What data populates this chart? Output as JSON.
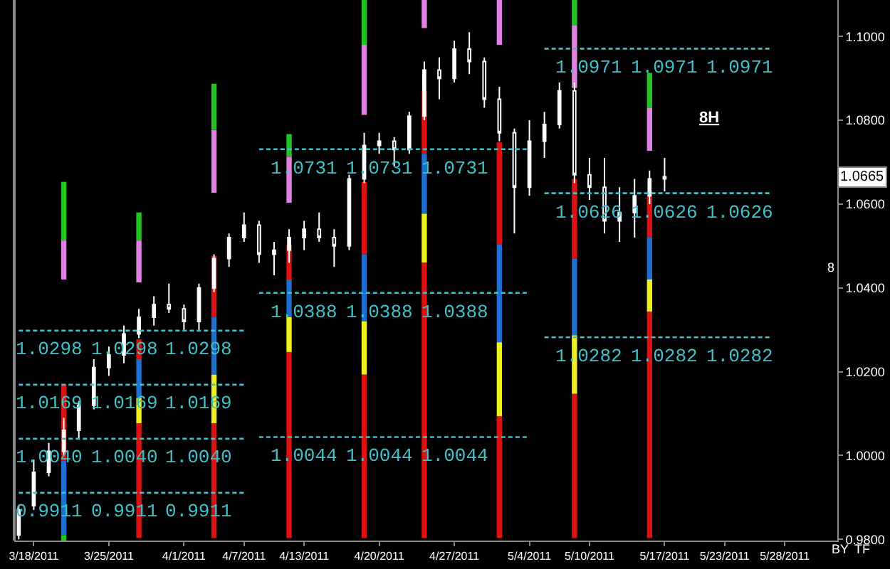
{
  "chart_data": {
    "type": "candlestick",
    "categories": [
      null,
      "3/18/2011",
      null,
      null,
      null,
      null,
      "3/25/2011",
      null,
      null,
      null,
      null,
      "4/1/2011",
      null,
      null,
      null,
      "4/7/2011",
      null,
      null,
      null,
      "4/13/2011",
      null,
      null,
      null,
      null,
      "4/20/2011",
      null,
      null,
      null,
      null,
      "4/27/2011",
      null,
      null,
      null,
      null,
      "5/4/2011",
      null,
      null,
      null,
      "5/10/2011",
      null,
      null,
      null,
      null,
      "5/17/2011",
      null,
      null,
      null,
      "5/23/2011",
      null,
      null,
      null,
      "5/28/2011",
      null,
      null,
      null
    ],
    "ylim": [
      0.9797,
      1.1087
    ],
    "yticks": [
      {
        "value": 0.98,
        "label": "0.9800"
      },
      {
        "value": 1.0,
        "label": "1.0000"
      },
      {
        "value": 1.02,
        "label": "1.0200"
      },
      {
        "value": 1.04,
        "label": "1.0400"
      },
      {
        "value": 1.06,
        "label": "1.0600"
      },
      {
        "value": 1.08,
        "label": "1.0800"
      },
      {
        "value": 1.1,
        "label": "1.1000"
      }
    ],
    "series": [
      {
        "type": "bar",
        "color": "#22c422",
        "values": [
          null,
          null,
          null,
          0.014,
          null,
          null,
          null,
          null,
          0.0067,
          null,
          null,
          null,
          null,
          0.011,
          null,
          null,
          null,
          null,
          0.0054,
          null,
          null,
          null,
          null,
          0.0107,
          null,
          null,
          null,
          null,
          null,
          null,
          null,
          null,
          null,
          null,
          null,
          null,
          null,
          0.006,
          null,
          null,
          null,
          null,
          0.0083,
          null,
          null,
          null,
          null,
          null,
          null,
          null,
          null,
          null,
          null,
          null,
          null
        ],
        "base": [
          null,
          null,
          null,
          1.0513,
          null,
          null,
          null,
          null,
          1.0513,
          null,
          null,
          null,
          null,
          1.0777,
          null,
          null,
          null,
          null,
          1.0713,
          null,
          null,
          null,
          null,
          1.098,
          null,
          null,
          null,
          null,
          null,
          null,
          null,
          null,
          null,
          null,
          null,
          null,
          null,
          1.1027,
          null,
          null,
          null,
          null,
          1.083,
          null,
          null,
          null,
          null,
          null,
          null,
          null,
          null,
          null,
          null,
          null,
          null
        ]
      },
      {
        "type": "bar",
        "color": "#e080e0",
        "values": [
          null,
          null,
          null,
          0.0093,
          null,
          null,
          null,
          null,
          0.01,
          null,
          null,
          null,
          null,
          0.015,
          null,
          null,
          null,
          null,
          0.011,
          null,
          null,
          null,
          null,
          0.0167,
          null,
          null,
          null,
          0.0067,
          null,
          null,
          null,
          null,
          0.0107,
          null,
          null,
          null,
          null,
          0.015,
          null,
          null,
          null,
          null,
          0.0103,
          null,
          null,
          null,
          null,
          null,
          null,
          null,
          null,
          null,
          null,
          null,
          null
        ],
        "base": [
          null,
          null,
          null,
          1.042,
          null,
          null,
          null,
          null,
          1.0413,
          null,
          null,
          null,
          null,
          1.0627,
          null,
          null,
          null,
          null,
          1.0603,
          null,
          null,
          null,
          null,
          1.0813,
          null,
          null,
          null,
          1.102,
          null,
          null,
          null,
          null,
          1.098,
          null,
          null,
          null,
          null,
          1.0877,
          null,
          null,
          null,
          null,
          1.0727,
          null,
          null,
          null,
          null,
          null,
          null,
          null,
          null,
          null,
          null,
          null,
          null
        ]
      },
      {
        "type": "bar",
        "color": "#dd1111",
        "values": [
          null,
          null,
          null,
          0.0183,
          null,
          null,
          null,
          null,
          0.0047,
          null,
          null,
          null,
          null,
          0.0147,
          null,
          null,
          null,
          null,
          0.0083,
          null,
          null,
          null,
          null,
          0.0173,
          null,
          null,
          null,
          0.015,
          null,
          null,
          null,
          null,
          0.0244,
          null,
          null,
          null,
          null,
          0.019,
          null,
          null,
          null,
          null,
          0.011,
          null,
          null,
          null,
          null,
          null,
          null,
          null,
          null,
          null,
          null,
          null,
          null
        ],
        "base": [
          null,
          null,
          null,
          0.9987,
          null,
          null,
          null,
          null,
          1.023,
          null,
          null,
          null,
          null,
          1.033,
          null,
          null,
          null,
          null,
          1.042,
          null,
          null,
          null,
          null,
          1.048,
          null,
          null,
          null,
          1.072,
          null,
          null,
          null,
          null,
          1.0503,
          null,
          null,
          null,
          null,
          1.047,
          null,
          null,
          null,
          null,
          1.052,
          null,
          null,
          null,
          null,
          null,
          null,
          null,
          null,
          null,
          null,
          null,
          null
        ]
      },
      {
        "type": "bar",
        "color": "#1e6fd0",
        "values": [
          null,
          null,
          null,
          0.0177,
          null,
          null,
          null,
          null,
          0.0093,
          null,
          null,
          null,
          null,
          0.0137,
          null,
          null,
          null,
          null,
          0.009,
          null,
          null,
          null,
          null,
          0.016,
          null,
          null,
          null,
          0.0143,
          null,
          null,
          null,
          null,
          0.0233,
          null,
          null,
          null,
          null,
          0.0183,
          null,
          null,
          null,
          null,
          0.01,
          null,
          null,
          null,
          null,
          null,
          null,
          null,
          null,
          null,
          null,
          null,
          null
        ],
        "base": [
          null,
          null,
          null,
          0.981,
          null,
          null,
          null,
          null,
          1.0137,
          null,
          null,
          null,
          null,
          1.0193,
          null,
          null,
          null,
          null,
          1.033,
          null,
          null,
          null,
          null,
          1.032,
          null,
          null,
          null,
          1.0577,
          null,
          null,
          null,
          null,
          1.027,
          null,
          null,
          null,
          null,
          1.0287,
          null,
          null,
          null,
          null,
          1.042,
          null,
          null,
          null,
          null,
          null,
          null,
          null,
          null,
          null,
          null,
          null,
          null
        ]
      },
      {
        "type": "bar",
        "color": "#f0f020",
        "values": [
          null,
          null,
          null,
          null,
          null,
          null,
          null,
          null,
          0.006,
          null,
          null,
          null,
          null,
          0.0116,
          null,
          null,
          null,
          null,
          0.0083,
          null,
          null,
          null,
          null,
          0.0127,
          null,
          null,
          null,
          0.0117,
          null,
          null,
          null,
          null,
          0.0177,
          null,
          null,
          null,
          null,
          0.014,
          null,
          null,
          null,
          null,
          0.0077,
          null,
          null,
          null,
          null,
          null,
          null,
          null,
          null,
          null,
          null,
          null,
          null
        ],
        "base": [
          null,
          null,
          null,
          null,
          null,
          null,
          null,
          null,
          1.0077,
          null,
          null,
          null,
          null,
          1.0077,
          null,
          null,
          null,
          null,
          1.0247,
          null,
          null,
          null,
          null,
          1.0193,
          null,
          null,
          null,
          1.046,
          null,
          null,
          null,
          null,
          1.0093,
          null,
          null,
          null,
          null,
          1.0147,
          null,
          null,
          null,
          null,
          1.0343,
          null,
          null,
          null,
          null,
          null,
          null,
          null,
          null,
          null,
          null,
          null,
          null
        ]
      },
      {
        "type": "bar",
        "color": "#dd1111",
        "values": [
          null,
          null,
          null,
          null,
          null,
          null,
          null,
          null,
          0.0274,
          null,
          null,
          null,
          null,
          0.0274,
          null,
          null,
          null,
          null,
          0.0444,
          null,
          null,
          null,
          null,
          0.039,
          null,
          null,
          null,
          0.0657,
          null,
          null,
          null,
          null,
          0.029,
          null,
          null,
          null,
          null,
          0.0344,
          null,
          null,
          null,
          null,
          0.054,
          null,
          null,
          null,
          null,
          null,
          null,
          null,
          null,
          null,
          null,
          null,
          null
        ],
        "base": [
          null,
          null,
          null,
          null,
          null,
          null,
          null,
          null,
          0.9803,
          null,
          null,
          null,
          null,
          0.9803,
          null,
          null,
          null,
          null,
          0.9803,
          null,
          null,
          null,
          null,
          0.9803,
          null,
          null,
          null,
          0.9803,
          null,
          null,
          null,
          null,
          0.9803,
          null,
          null,
          null,
          null,
          0.9803,
          null,
          null,
          null,
          null,
          0.9803,
          null,
          null,
          null,
          null,
          null,
          null,
          null,
          null,
          null,
          null,
          null,
          null
        ]
      },
      {
        "type": "bar",
        "color": "#22c422",
        "values": [
          null,
          null,
          null,
          0.0013,
          null,
          null,
          null,
          null,
          null,
          null,
          null,
          null,
          null,
          null,
          null,
          null,
          null,
          null,
          null,
          null,
          null,
          null,
          null,
          null,
          null,
          null,
          null,
          null,
          null,
          null,
          null,
          null,
          null,
          null,
          null,
          null,
          null,
          null,
          null,
          null,
          null,
          null,
          null,
          null,
          null,
          null,
          null,
          null,
          null,
          null,
          null,
          null,
          null,
          null,
          null
        ],
        "base": [
          null,
          null,
          null,
          0.9797,
          null,
          null,
          null,
          null,
          null,
          null,
          null,
          null,
          null,
          null,
          null,
          null,
          null,
          null,
          null,
          null,
          null,
          null,
          null,
          null,
          null,
          null,
          null,
          null,
          null,
          null,
          null,
          null,
          null,
          null,
          null,
          null,
          null,
          null,
          null,
          null,
          null,
          null,
          null,
          null,
          null,
          null,
          null,
          null,
          null,
          null,
          null,
          null,
          null,
          null,
          null
        ]
      },
      {
        "type": "line",
        "color": "#40c0c8",
        "line_style": "dashed",
        "values": [
          0.9911,
          0.9911,
          0.9911,
          0.9911,
          0.9911,
          0.9911,
          0.9911,
          0.9911,
          0.9911,
          0.9911,
          0.9911,
          0.9911,
          0.9911,
          0.9911,
          0.9911,
          0.9911,
          null,
          null,
          null,
          null,
          null,
          null,
          null,
          null,
          null,
          null,
          null,
          null,
          null,
          null,
          null,
          null,
          null,
          null,
          null,
          null,
          null,
          null,
          null,
          null,
          null,
          null,
          null,
          null,
          null,
          null,
          null,
          null,
          null,
          null,
          null,
          null,
          null,
          null,
          null
        ],
        "value_labels": [
          null,
          null,
          "0.9911",
          null,
          null,
          null,
          null,
          "0.9911",
          null,
          null,
          null,
          null,
          "0.9911",
          null,
          null,
          null,
          null,
          null,
          null,
          null,
          null,
          null,
          null,
          null,
          null,
          null,
          null,
          null,
          null,
          null,
          null,
          null,
          null,
          null,
          null,
          null,
          null,
          null,
          null,
          null,
          null,
          null,
          null,
          null,
          null,
          null,
          null,
          null,
          null,
          null,
          null,
          null,
          null,
          null,
          null
        ]
      },
      {
        "type": "line",
        "color": "#40c0c8",
        "line_style": "dashed",
        "values": [
          1.004,
          1.004,
          1.004,
          1.004,
          1.004,
          1.004,
          1.004,
          1.004,
          1.004,
          1.004,
          1.004,
          1.004,
          1.004,
          1.004,
          1.004,
          1.004,
          null,
          null,
          null,
          null,
          null,
          null,
          null,
          null,
          null,
          null,
          null,
          null,
          null,
          null,
          null,
          null,
          null,
          null,
          null,
          null,
          null,
          null,
          null,
          null,
          null,
          null,
          null,
          null,
          null,
          null,
          null,
          null,
          null,
          null,
          null,
          null,
          null,
          null,
          null
        ],
        "value_labels": [
          null,
          null,
          "1.0040",
          null,
          null,
          null,
          null,
          "1.0040",
          null,
          null,
          null,
          null,
          "1.0040",
          null,
          null,
          null,
          null,
          null,
          null,
          null,
          null,
          null,
          null,
          null,
          null,
          null,
          null,
          null,
          null,
          null,
          null,
          null,
          null,
          null,
          null,
          null,
          null,
          null,
          null,
          null,
          null,
          null,
          null,
          null,
          null,
          null,
          null,
          null,
          null,
          null,
          null,
          null,
          null,
          null,
          null
        ]
      },
      {
        "type": "line",
        "color": "#40c0c8",
        "line_style": "dashed",
        "values": [
          1.0169,
          1.0169,
          1.0169,
          1.0169,
          1.0169,
          1.0169,
          1.0169,
          1.0169,
          1.0169,
          1.0169,
          1.0169,
          1.0169,
          1.0169,
          1.0169,
          1.0169,
          1.0169,
          null,
          null,
          null,
          null,
          null,
          null,
          null,
          null,
          null,
          null,
          null,
          null,
          null,
          null,
          null,
          null,
          null,
          null,
          null,
          null,
          null,
          null,
          null,
          null,
          null,
          null,
          null,
          null,
          null,
          null,
          null,
          null,
          null,
          null,
          null,
          null,
          null,
          null,
          null
        ],
        "value_labels": [
          null,
          null,
          "1.0169",
          null,
          null,
          null,
          null,
          "1.0169",
          null,
          null,
          null,
          null,
          "1.0169",
          null,
          null,
          null,
          null,
          null,
          null,
          null,
          null,
          null,
          null,
          null,
          null,
          null,
          null,
          null,
          null,
          null,
          null,
          null,
          null,
          null,
          null,
          null,
          null,
          null,
          null,
          null,
          null,
          null,
          null,
          null,
          null,
          null,
          null,
          null,
          null,
          null,
          null,
          null,
          null,
          null,
          null
        ]
      },
      {
        "type": "line",
        "color": "#40c0c8",
        "line_style": "dashed",
        "values": [
          1.0298,
          1.0298,
          1.0298,
          1.0298,
          1.0298,
          1.0298,
          1.0298,
          1.0298,
          1.0298,
          1.0298,
          1.0298,
          1.0298,
          1.0298,
          1.0298,
          1.0298,
          1.0298,
          null,
          null,
          null,
          null,
          null,
          null,
          null,
          null,
          null,
          null,
          null,
          null,
          null,
          null,
          null,
          null,
          null,
          null,
          null,
          null,
          null,
          null,
          null,
          null,
          null,
          null,
          null,
          null,
          null,
          null,
          null,
          null,
          null,
          null,
          null,
          null,
          null,
          null,
          null
        ],
        "value_labels": [
          null,
          null,
          "1.0298",
          null,
          null,
          null,
          null,
          "1.0298",
          null,
          null,
          null,
          null,
          "1.0298",
          null,
          null,
          null,
          null,
          null,
          null,
          null,
          null,
          null,
          null,
          null,
          null,
          null,
          null,
          null,
          null,
          null,
          null,
          null,
          null,
          null,
          null,
          null,
          null,
          null,
          null,
          null,
          null,
          null,
          null,
          null,
          null,
          null,
          null,
          null,
          null,
          null,
          null,
          null,
          null,
          null,
          null
        ]
      },
      {
        "type": "line",
        "color": "#40c0c8",
        "line_style": "dashed",
        "values": [
          null,
          null,
          null,
          null,
          null,
          null,
          null,
          null,
          null,
          null,
          null,
          null,
          null,
          null,
          null,
          null,
          1.0044,
          1.0044,
          1.0044,
          1.0044,
          1.0044,
          1.0044,
          1.0044,
          1.0044,
          1.0044,
          1.0044,
          1.0044,
          1.0044,
          1.0044,
          1.0044,
          1.0044,
          1.0044,
          1.0044,
          1.0044,
          1.0044,
          null,
          null,
          null,
          null,
          null,
          null,
          null,
          null,
          null,
          null,
          null,
          null,
          null,
          null,
          null,
          null,
          null,
          null,
          null,
          null
        ],
        "value_labels": [
          null,
          null,
          null,
          null,
          null,
          null,
          null,
          null,
          null,
          null,
          null,
          null,
          null,
          null,
          null,
          null,
          null,
          null,
          null,
          "1.0044",
          null,
          null,
          null,
          null,
          "1.0044",
          null,
          null,
          null,
          null,
          "1.0044",
          null,
          null,
          null,
          null,
          null,
          null,
          null,
          null,
          null,
          null,
          null,
          null,
          null,
          null,
          null,
          null,
          null,
          null,
          null,
          null,
          null,
          null,
          null,
          null,
          null
        ]
      },
      {
        "type": "line",
        "color": "#40c0c8",
        "line_style": "dashed",
        "values": [
          null,
          null,
          null,
          null,
          null,
          null,
          null,
          null,
          null,
          null,
          null,
          null,
          null,
          null,
          null,
          null,
          1.0388,
          1.0388,
          1.0388,
          1.0388,
          1.0388,
          1.0388,
          1.0388,
          1.0388,
          1.0388,
          1.0388,
          1.0388,
          1.0388,
          1.0388,
          1.0388,
          1.0388,
          1.0388,
          1.0388,
          1.0388,
          1.0388,
          null,
          null,
          null,
          null,
          null,
          null,
          null,
          null,
          null,
          null,
          null,
          null,
          null,
          null,
          null,
          null,
          null,
          null,
          null,
          null
        ],
        "value_labels": [
          null,
          null,
          null,
          null,
          null,
          null,
          null,
          null,
          null,
          null,
          null,
          null,
          null,
          null,
          null,
          null,
          null,
          null,
          null,
          "1.0388",
          null,
          null,
          null,
          null,
          "1.0388",
          null,
          null,
          null,
          null,
          "1.0388",
          null,
          null,
          null,
          null,
          null,
          null,
          null,
          null,
          null,
          null,
          null,
          null,
          null,
          null,
          null,
          null,
          null,
          null,
          null,
          null,
          null,
          null,
          null,
          null,
          null
        ]
      },
      {
        "type": "line",
        "color": "#40c0c8",
        "line_style": "dashed",
        "values": [
          null,
          null,
          null,
          null,
          null,
          null,
          null,
          null,
          null,
          null,
          null,
          null,
          null,
          null,
          null,
          null,
          1.0731,
          1.0731,
          1.0731,
          1.0731,
          1.0731,
          1.0731,
          1.0731,
          1.0731,
          1.0731,
          1.0731,
          1.0731,
          1.0731,
          1.0731,
          1.0731,
          1.0731,
          1.0731,
          1.0731,
          1.0731,
          1.0731,
          null,
          null,
          null,
          null,
          null,
          null,
          null,
          null,
          null,
          null,
          null,
          null,
          null,
          null,
          null,
          null,
          null,
          null,
          null,
          null
        ],
        "value_labels": [
          null,
          null,
          null,
          null,
          null,
          null,
          null,
          null,
          null,
          null,
          null,
          null,
          null,
          null,
          null,
          null,
          null,
          null,
          null,
          "1.0731",
          null,
          null,
          null,
          null,
          "1.0731",
          null,
          null,
          null,
          null,
          "1.0731",
          null,
          null,
          null,
          null,
          null,
          null,
          null,
          null,
          null,
          null,
          null,
          null,
          null,
          null,
          null,
          null,
          null,
          null,
          null,
          null,
          null,
          null,
          null,
          null,
          null
        ]
      },
      {
        "type": "line",
        "color": "#40c0c8",
        "line_style": "dashed",
        "values": [
          null,
          null,
          null,
          null,
          null,
          null,
          null,
          null,
          null,
          null,
          null,
          null,
          null,
          null,
          null,
          null,
          null,
          null,
          null,
          null,
          null,
          null,
          null,
          null,
          null,
          null,
          null,
          null,
          null,
          null,
          null,
          null,
          null,
          null,
          null,
          1.0282,
          1.0282,
          1.0282,
          1.0282,
          1.0282,
          1.0282,
          1.0282,
          1.0282,
          1.0282,
          1.0282,
          1.0282,
          1.0282,
          1.0282,
          1.0282,
          1.0282,
          1.0282,
          null,
          null,
          null,
          null
        ],
        "value_labels": [
          null,
          null,
          null,
          null,
          null,
          null,
          null,
          null,
          null,
          null,
          null,
          null,
          null,
          null,
          null,
          null,
          null,
          null,
          null,
          null,
          null,
          null,
          null,
          null,
          null,
          null,
          null,
          null,
          null,
          null,
          null,
          null,
          null,
          null,
          null,
          null,
          null,
          null,
          "1.0282",
          null,
          null,
          null,
          null,
          "1.0282",
          null,
          null,
          null,
          null,
          "1.0282",
          null,
          null,
          null,
          null,
          null,
          null
        ]
      },
      {
        "type": "line",
        "color": "#40c0c8",
        "line_style": "dashed",
        "values": [
          null,
          null,
          null,
          null,
          null,
          null,
          null,
          null,
          null,
          null,
          null,
          null,
          null,
          null,
          null,
          null,
          null,
          null,
          null,
          null,
          null,
          null,
          null,
          null,
          null,
          null,
          null,
          null,
          null,
          null,
          null,
          null,
          null,
          null,
          null,
          1.0626,
          1.0626,
          1.0626,
          1.0626,
          1.0626,
          1.0626,
          1.0626,
          1.0626,
          1.0626,
          1.0626,
          1.0626,
          1.0626,
          1.0626,
          1.0626,
          1.0626,
          1.0626,
          null,
          null,
          null,
          null
        ],
        "value_labels": [
          null,
          null,
          null,
          null,
          null,
          null,
          null,
          null,
          null,
          null,
          null,
          null,
          null,
          null,
          null,
          null,
          null,
          null,
          null,
          null,
          null,
          null,
          null,
          null,
          null,
          null,
          null,
          null,
          null,
          null,
          null,
          null,
          null,
          null,
          null,
          null,
          null,
          null,
          "1.0626",
          null,
          null,
          null,
          null,
          "1.0626",
          null,
          null,
          null,
          null,
          "1.0626",
          null,
          null,
          null,
          null,
          null,
          null
        ]
      },
      {
        "type": "line",
        "color": "#40c0c8",
        "line_style": "dashed",
        "values": [
          null,
          null,
          null,
          null,
          null,
          null,
          null,
          null,
          null,
          null,
          null,
          null,
          null,
          null,
          null,
          null,
          null,
          null,
          null,
          null,
          null,
          null,
          null,
          null,
          null,
          null,
          null,
          null,
          null,
          null,
          null,
          null,
          null,
          null,
          null,
          1.0971,
          1.0971,
          1.0971,
          1.0971,
          1.0971,
          1.0971,
          1.0971,
          1.0971,
          1.0971,
          1.0971,
          1.0971,
          1.0971,
          1.0971,
          1.0971,
          1.0971,
          1.0971,
          null,
          null,
          null,
          null
        ],
        "value_labels": [
          null,
          null,
          null,
          null,
          null,
          null,
          null,
          null,
          null,
          null,
          null,
          null,
          null,
          null,
          null,
          null,
          null,
          null,
          null,
          null,
          null,
          null,
          null,
          null,
          null,
          null,
          null,
          null,
          null,
          null,
          null,
          null,
          null,
          null,
          null,
          null,
          null,
          null,
          "1.0971",
          null,
          null,
          null,
          null,
          "1.0971",
          null,
          null,
          null,
          null,
          "1.0971",
          null,
          null,
          null,
          null,
          null,
          null
        ]
      },
      {
        "color": "#ffffff",
        "ohlc": [
          [
            0.981,
            0.988,
            0.98,
            0.987
          ],
          [
            0.988,
            0.999,
            0.987,
            0.996
          ],
          [
            0.996,
            1.003,
            0.995,
            1.001
          ],
          [
            1.001,
            1.009,
            1.0,
            1.006
          ],
          [
            1.006,
            1.013,
            1.004,
            1.012
          ],
          [
            1.012,
            1.023,
            1.011,
            1.021
          ],
          [
            1.021,
            1.026,
            1.019,
            1.024
          ],
          [
            1.024,
            1.031,
            1.022,
            1.029
          ],
          [
            1.029,
            1.035,
            1.028,
            1.033
          ],
          [
            1.033,
            1.038,
            1.031,
            1.036
          ],
          [
            1.036,
            1.041,
            1.034,
            1.035
          ],
          [
            1.035,
            1.036,
            1.03,
            1.032
          ],
          [
            1.032,
            1.041,
            1.03,
            1.04
          ],
          [
            1.04,
            1.048,
            1.039,
            1.047
          ],
          [
            1.047,
            1.053,
            1.045,
            1.052
          ],
          [
            1.052,
            1.058,
            1.051,
            1.055
          ],
          [
            1.055,
            1.056,
            1.046,
            1.048
          ],
          [
            1.048,
            1.051,
            1.043,
            1.049
          ],
          [
            1.049,
            1.054,
            1.046,
            1.052
          ],
          [
            1.052,
            1.056,
            1.049,
            1.054
          ],
          [
            1.054,
            1.058,
            1.051,
            1.052
          ],
          [
            1.052,
            1.054,
            1.045,
            1.05
          ],
          [
            1.05,
            1.067,
            1.049,
            1.066
          ],
          [
            1.066,
            1.077,
            1.065,
            1.074
          ],
          [
            1.074,
            1.077,
            1.072,
            1.075
          ],
          [
            1.075,
            1.076,
            1.069,
            1.073
          ],
          [
            1.073,
            1.082,
            1.072,
            1.081
          ],
          [
            1.081,
            1.094,
            1.08,
            1.092
          ],
          [
            1.092,
            1.095,
            1.085,
            1.09
          ],
          [
            1.09,
            1.099,
            1.089,
            1.097
          ],
          [
            1.097,
            1.101,
            1.091,
            1.094
          ],
          [
            1.094,
            1.095,
            1.083,
            1.085
          ],
          [
            1.085,
            1.088,
            1.075,
            1.077
          ],
          [
            1.077,
            1.078,
            1.053,
            1.064
          ],
          [
            1.064,
            1.08,
            1.062,
            1.075
          ],
          [
            1.075,
            1.082,
            1.071,
            1.079
          ],
          [
            1.079,
            1.089,
            1.078,
            1.087
          ],
          [
            1.087,
            1.089,
            1.065,
            1.067
          ],
          [
            1.067,
            1.071,
            1.061,
            1.064
          ],
          [
            1.064,
            1.071,
            1.053,
            1.056
          ],
          [
            1.056,
            1.064,
            1.051,
            1.058
          ],
          [
            1.058,
            1.066,
            1.052,
            1.062
          ],
          [
            1.062,
            1.068,
            1.06,
            1.066
          ],
          [
            1.066,
            1.071,
            1.063,
            1.0665
          ],
          null,
          null,
          null,
          null,
          null,
          null,
          null,
          null,
          null,
          null,
          null
        ]
      }
    ],
    "annotations": [
      "8H",
      {
        "text": "1.0665",
        "y": 1.0665
      },
      "8",
      "BY",
      "TF"
    ]
  }
}
